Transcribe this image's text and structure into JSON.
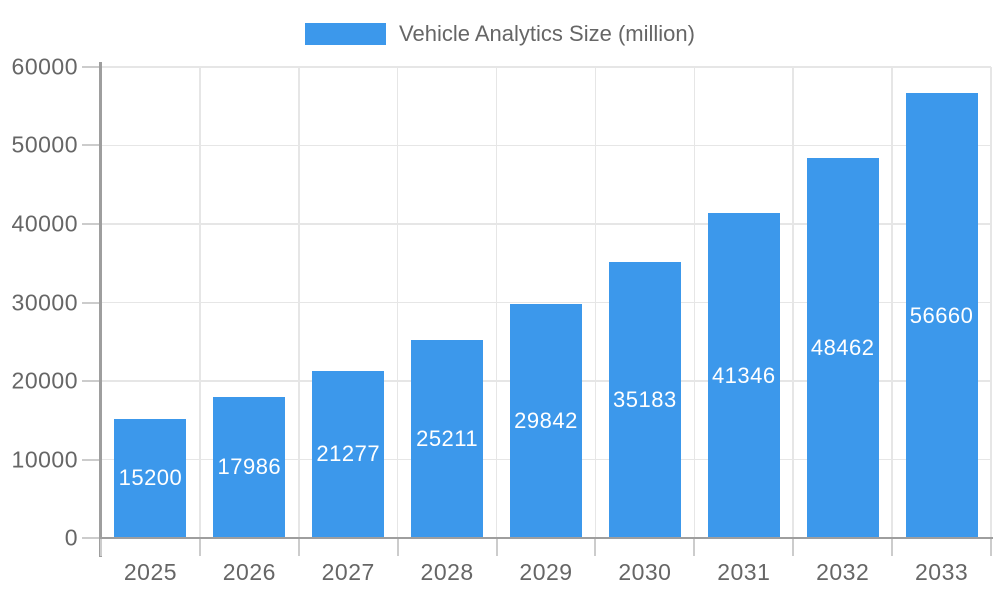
{
  "chart_data": {
    "type": "bar",
    "title": "Vehicle Analytics Size (million)",
    "categories": [
      "2025",
      "2026",
      "2027",
      "2028",
      "2029",
      "2030",
      "2031",
      "2032",
      "2033"
    ],
    "series": [
      {
        "name": "Vehicle Analytics Size (million)",
        "values": [
          15200,
          17986,
          21277,
          25211,
          29842,
          35183,
          41346,
          48462,
          56660
        ]
      }
    ],
    "value_labels": [
      "15200",
      "17986",
      "21277",
      "25211",
      "29842",
      "35183",
      "41346",
      "48462",
      "56660"
    ],
    "xlabel": "",
    "ylabel": "",
    "ylim": [
      0,
      60000
    ],
    "ytick_step": 10000,
    "yticks": [
      0,
      10000,
      20000,
      30000,
      40000,
      50000,
      60000
    ],
    "ytick_labels": [
      "0",
      "10000",
      "20000",
      "30000",
      "40000",
      "50000",
      "60000"
    ],
    "grid": true,
    "legend_position": "top-center",
    "colors": {
      "bar": "#3C98EB",
      "value_label": "#FFFFFF",
      "axis_line": "#9E9E9E",
      "tick": "#CCCCCC",
      "gridline": "#E6E6E6",
      "text": "#666666",
      "background": "#FFFFFF"
    }
  }
}
